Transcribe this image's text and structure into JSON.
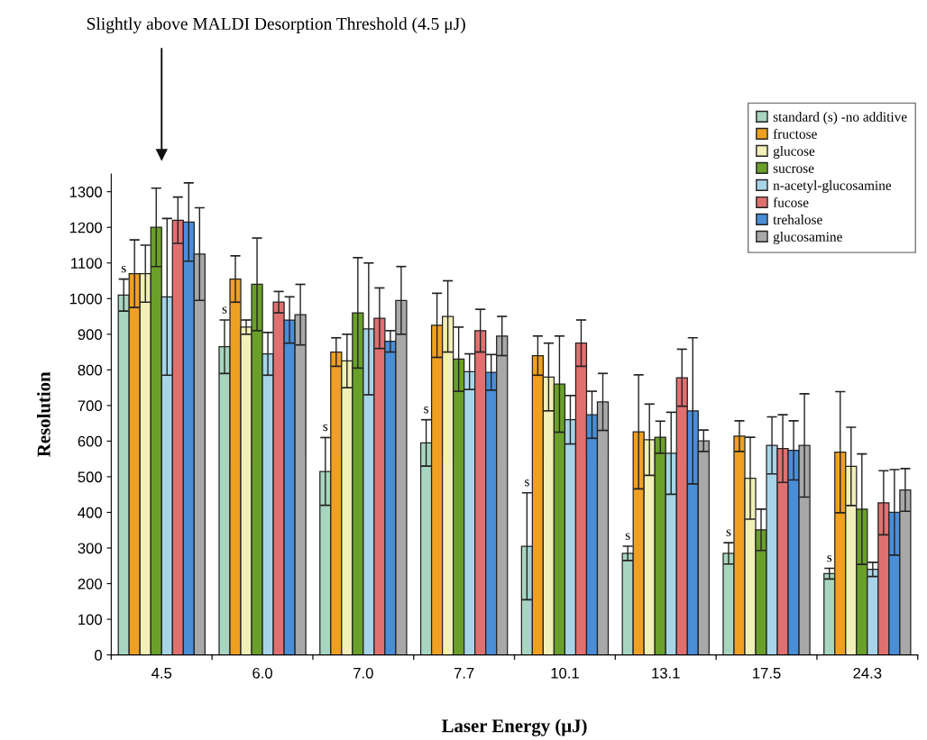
{
  "chart_data": {
    "type": "bar",
    "xlabel": "Laser Energy (μJ)",
    "ylabel": "Resolution",
    "categories": [
      "4.5",
      "6.0",
      "7.0",
      "7.7",
      "10.1",
      "13.1",
      "17.5",
      "24.3"
    ],
    "series": [
      {
        "name": "standard (s) -no additive",
        "color": "#a8d5c0",
        "values": [
          1010,
          865,
          515,
          595,
          305,
          285,
          285,
          228
        ],
        "errors": [
          45,
          75,
          95,
          65,
          150,
          20,
          30,
          15
        ]
      },
      {
        "name": "fructose",
        "color": "#f0a020",
        "values": [
          1070,
          1055,
          850,
          925,
          840,
          626,
          614,
          569
        ],
        "errors": [
          95,
          65,
          40,
          90,
          55,
          160,
          43,
          170
        ]
      },
      {
        "name": "glucose",
        "color": "#f2f0b8",
        "values": [
          1070,
          920,
          825,
          950,
          780,
          604,
          496,
          529
        ],
        "errors": [
          80,
          20,
          75,
          100,
          95,
          100,
          115,
          110
        ]
      },
      {
        "name": "sucrose",
        "color": "#6aa02a",
        "values": [
          1200,
          1040,
          960,
          830,
          760,
          611,
          351,
          409
        ],
        "errors": [
          110,
          130,
          155,
          90,
          135,
          45,
          58,
          155
        ]
      },
      {
        "name": "n-acetyl-glucosamine",
        "color": "#a8d4e8",
        "values": [
          1005,
          845,
          915,
          795,
          660,
          566,
          588,
          240
        ],
        "errors": [
          220,
          60,
          185,
          50,
          68,
          115,
          80,
          20
        ]
      },
      {
        "name": "fucose",
        "color": "#e07070",
        "values": [
          1220,
          990,
          945,
          910,
          875,
          778,
          579,
          427
        ],
        "errors": [
          65,
          30,
          85,
          60,
          65,
          80,
          95,
          90
        ]
      },
      {
        "name": "trehalose",
        "color": "#4a8ed8",
        "values": [
          1215,
          940,
          880,
          793,
          674,
          685,
          574,
          400
        ],
        "errors": [
          110,
          65,
          30,
          50,
          66,
          205,
          83,
          120
        ]
      },
      {
        "name": "glucosamine",
        "color": "#a8a8a8",
        "values": [
          1125,
          955,
          995,
          895,
          710,
          601,
          588,
          463
        ],
        "errors": [
          130,
          85,
          95,
          55,
          80,
          30,
          145,
          60
        ]
      }
    ],
    "ylim": [
      0,
      1350
    ],
    "yticks": [
      0,
      100,
      200,
      300,
      400,
      500,
      600,
      700,
      800,
      900,
      1000,
      1100,
      1200,
      1300
    ],
    "legend": "top right",
    "grid": false,
    "annotations": [
      "Slightly above MALDI Desorption Threshold (4.5 μJ)",
      {
        "text": "s",
        "x": "4.5",
        "y": 1055
      },
      {
        "text": "s",
        "x": "6.0",
        "y": 940
      },
      {
        "text": "s",
        "x": "7.0",
        "y": 610
      },
      {
        "text": "s",
        "x": "7.7",
        "y": 660
      },
      {
        "text": "s",
        "x": "10.1",
        "y": 455
      },
      {
        "text": "s",
        "x": "13.1",
        "y": 305
      },
      {
        "text": "s",
        "x": "17.5",
        "y": 315
      },
      {
        "text": "s",
        "x": "24.3",
        "y": 243
      }
    ]
  }
}
